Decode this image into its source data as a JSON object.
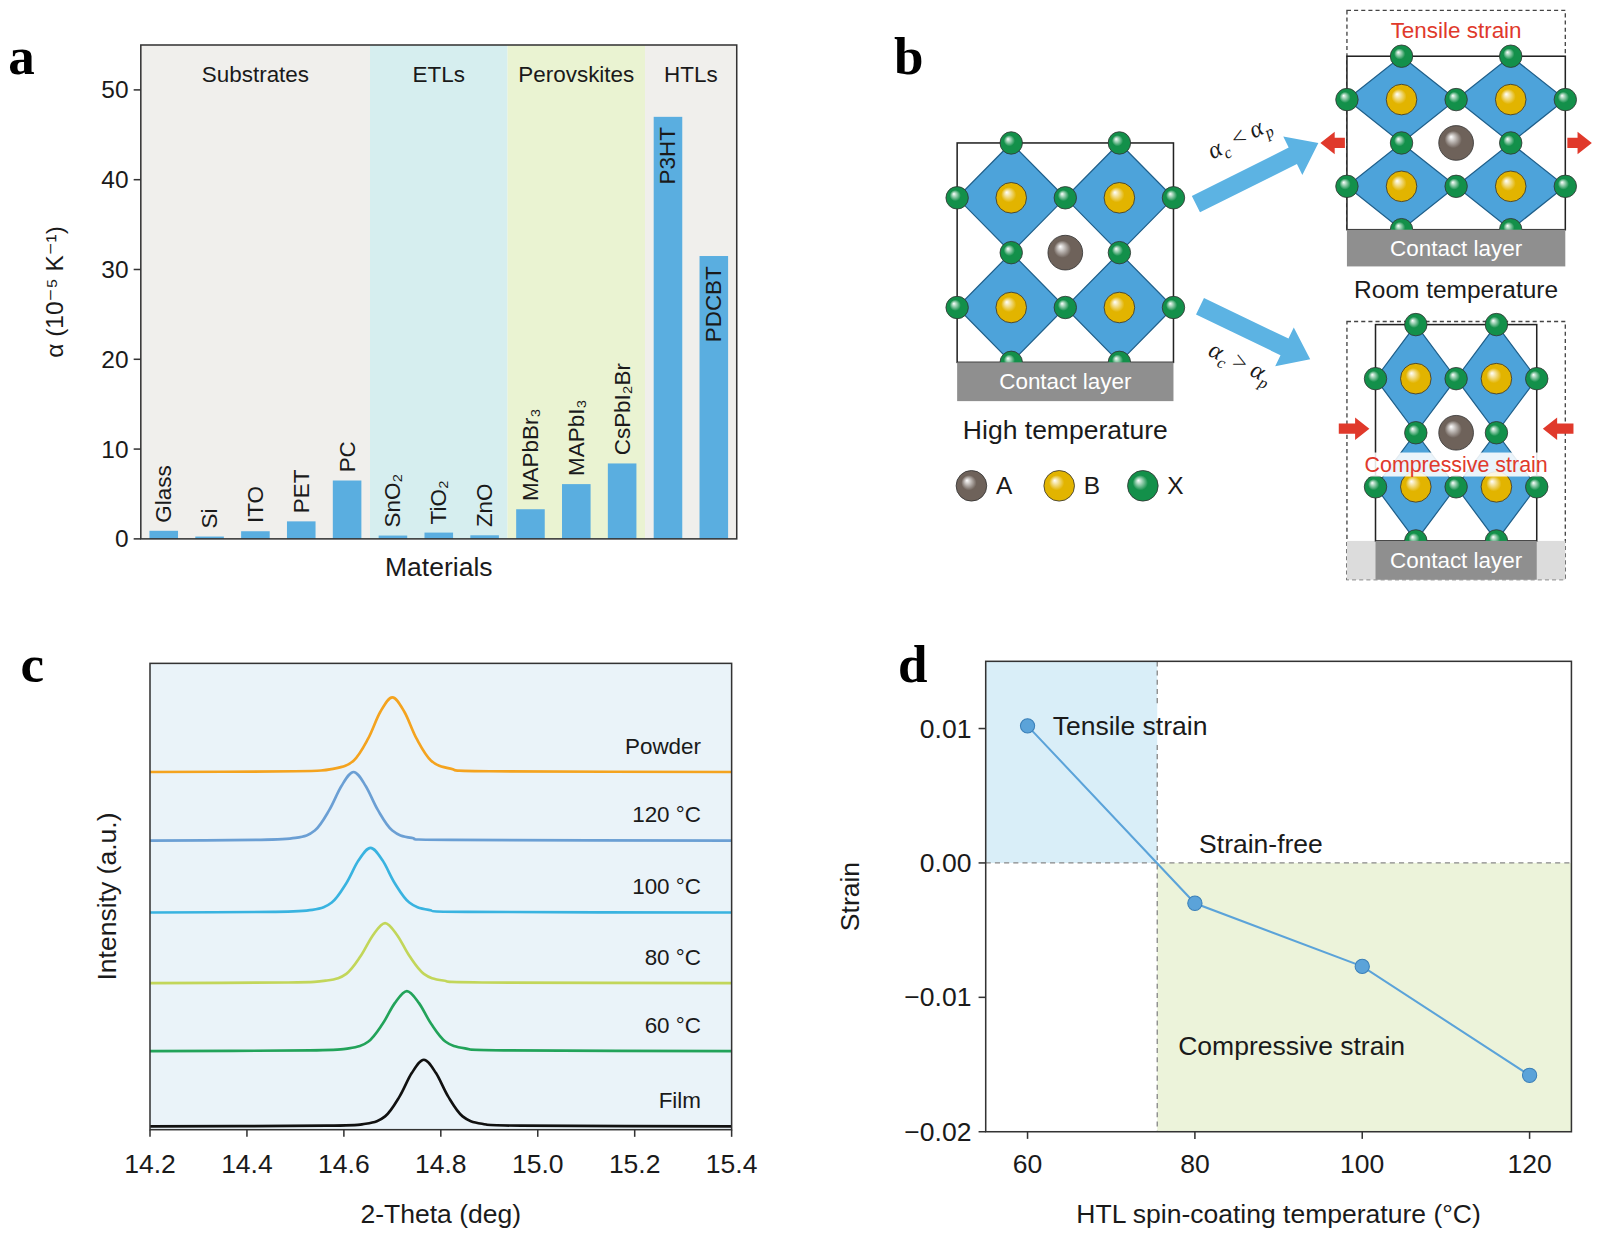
{
  "chart_data": [
    {
      "panel_label": "a",
      "type": "bar",
      "categories": [
        "Glass",
        "Si",
        "ITO",
        "PET",
        "PC",
        "SnO₂",
        "TiO₂",
        "ZnO",
        "MAPbBr₃",
        "MAPbI₃",
        "CsPbI₂Br",
        "P3HT",
        "PDCBT"
      ],
      "values": [
        0.9,
        0.26,
        0.85,
        1.95,
        6.5,
        0.37,
        0.7,
        0.4,
        3.3,
        6.1,
        8.4,
        47,
        31.5
      ],
      "color": "#5aaee0",
      "ylim": [
        0,
        55
      ],
      "yticks": [
        0,
        10,
        20,
        30,
        40,
        50
      ],
      "y_label": "α (10⁻⁵ K⁻¹)",
      "x_label": "Materials",
      "tick_labels": "y",
      "groups": [
        {
          "name": "Substrates",
          "start": 0,
          "end": 4,
          "color": "#f0efec"
        },
        {
          "name": "ETLs",
          "start": 5,
          "end": 7,
          "color": "#d6eeef"
        },
        {
          "name": "Perovskites",
          "start": 8,
          "end": 10,
          "color": "#eaf3d2"
        },
        {
          "name": "HTLs",
          "start": 11,
          "end": 12,
          "color": "#f0efec"
        }
      ]
    },
    {
      "panel_label": "c",
      "type": "line",
      "x_label": "2-Theta (deg)",
      "y_label": "Intensity (a.u.)",
      "xlim": [
        14.2,
        15.4
      ],
      "xticks": [
        14.2,
        14.4,
        14.6,
        14.8,
        {
          "value": 15,
          "label": "15.0"
        },
        15.2,
        15.4
      ],
      "ylim": [
        0,
        7
      ],
      "tick_labels": "x",
      "series": [
        {
          "name": "Powder",
          "color": "#f4a31f",
          "x": [
            14.2,
            14.5,
            14.58,
            14.62,
            14.65,
            14.675,
            14.7,
            14.725,
            14.75,
            14.78,
            14.82,
            14.9,
            15.4
          ],
          "values": [
            5.37,
            5.38,
            5.42,
            5.54,
            5.87,
            6.27,
            6.49,
            6.27,
            5.87,
            5.54,
            5.42,
            5.38,
            5.37
          ]
        },
        {
          "name": "120 °C",
          "color": "#6b9fd4",
          "x": [
            14.2,
            14.42,
            14.5,
            14.54,
            14.57,
            14.595,
            14.62,
            14.645,
            14.67,
            14.7,
            14.74,
            14.82,
            15.4
          ],
          "values": [
            4.34,
            4.35,
            4.38,
            4.49,
            4.8,
            5.16,
            5.37,
            5.16,
            4.8,
            4.49,
            4.38,
            4.35,
            4.34
          ]
        },
        {
          "name": "100 °C",
          "color": "#39b3e0",
          "x": [
            14.2,
            14.455,
            14.535,
            14.575,
            14.605,
            14.63,
            14.655,
            14.68,
            14.705,
            14.735,
            14.775,
            14.855,
            15.4
          ],
          "values": [
            3.26,
            3.27,
            3.3,
            3.41,
            3.7,
            4.04,
            4.23,
            4.04,
            3.7,
            3.41,
            3.3,
            3.27,
            3.26
          ]
        },
        {
          "name": "80 °C",
          "color": "#c2d65a",
          "x": [
            14.2,
            14.485,
            14.565,
            14.605,
            14.635,
            14.66,
            14.685,
            14.71,
            14.735,
            14.765,
            14.805,
            14.885,
            15.4
          ],
          "values": [
            2.2,
            2.21,
            2.24,
            2.34,
            2.61,
            2.92,
            3.1,
            2.92,
            2.61,
            2.34,
            2.24,
            2.21,
            2.2
          ]
        },
        {
          "name": "60 °C",
          "color": "#22a35a",
          "x": [
            14.2,
            14.53,
            14.61,
            14.65,
            14.68,
            14.705,
            14.73,
            14.755,
            14.78,
            14.81,
            14.85,
            14.93,
            15.4
          ],
          "values": [
            1.18,
            1.19,
            1.22,
            1.32,
            1.59,
            1.9,
            2.08,
            1.9,
            1.59,
            1.32,
            1.22,
            1.19,
            1.18
          ]
        },
        {
          "name": "Film",
          "color": "#111111",
          "x": [
            14.2,
            14.565,
            14.645,
            14.685,
            14.715,
            14.74,
            14.765,
            14.79,
            14.815,
            14.845,
            14.885,
            14.965,
            15.4
          ],
          "values": [
            0.05,
            0.06,
            0.09,
            0.2,
            0.5,
            0.85,
            1.05,
            0.85,
            0.5,
            0.2,
            0.09,
            0.06,
            0.05
          ]
        }
      ]
    },
    {
      "panel_label": "d",
      "type": "line",
      "marker": "circle",
      "color": "#5ba3d9",
      "x": [
        60,
        80,
        100,
        120
      ],
      "values": [
        0.0102,
        -0.003,
        -0.0077,
        -0.0158
      ],
      "xlim": [
        55,
        125
      ],
      "xticks": [
        60,
        80,
        100,
        120
      ],
      "ylim": [
        -0.02,
        0.015
      ],
      "yticks": [
        {
          "value": -0.02,
          "label": "−0.02"
        },
        {
          "value": -0.01,
          "label": "−0.01"
        },
        {
          "value": 0,
          "label": "0.00"
        },
        0.01
      ],
      "x_label": "HTL spin-coating temperature (°C)",
      "y_label": "Strain",
      "regions": [
        {
          "x": [
            55,
            75.5
          ],
          "y": [
            0,
            0.015
          ],
          "color": "#d9eef8"
        },
        {
          "x": [
            75.5,
            125
          ],
          "y": [
            -0.02,
            0
          ],
          "color": "#ecf3da"
        }
      ],
      "annotations": [
        {
          "text": "Tensile strain",
          "x": 63,
          "y": 0.0102
        },
        {
          "text": "Strain-free",
          "x": 80.5,
          "y": 0.0014
        },
        {
          "text": "Compressive strain",
          "x": 78,
          "y": -0.0136
        }
      ]
    }
  ],
  "diagram": {
    "panel_label": "b",
    "initial": {
      "caption": "High temperature",
      "layer": "Contact layer"
    },
    "transitions": [
      {
        "condition": {
          "lhs": "α",
          "lhs_sub": "c",
          "op": "<",
          "rhs": "α",
          "rhs_sub": "p"
        },
        "strain": "Tensile strain",
        "layer": "Contact layer"
      },
      {
        "condition": {
          "lhs": "α",
          "lhs_sub": "c",
          "op": ">",
          "rhs": "α",
          "rhs_sub": "p"
        },
        "strain": "Compressive strain",
        "layer": "Contact layer"
      }
    ],
    "result_caption": "Room temperature",
    "legend": [
      {
        "label": "A",
        "color": "#6e625a"
      },
      {
        "label": "B",
        "color": "#e2b400"
      },
      {
        "label": "X",
        "color": "#13904a"
      }
    ]
  }
}
